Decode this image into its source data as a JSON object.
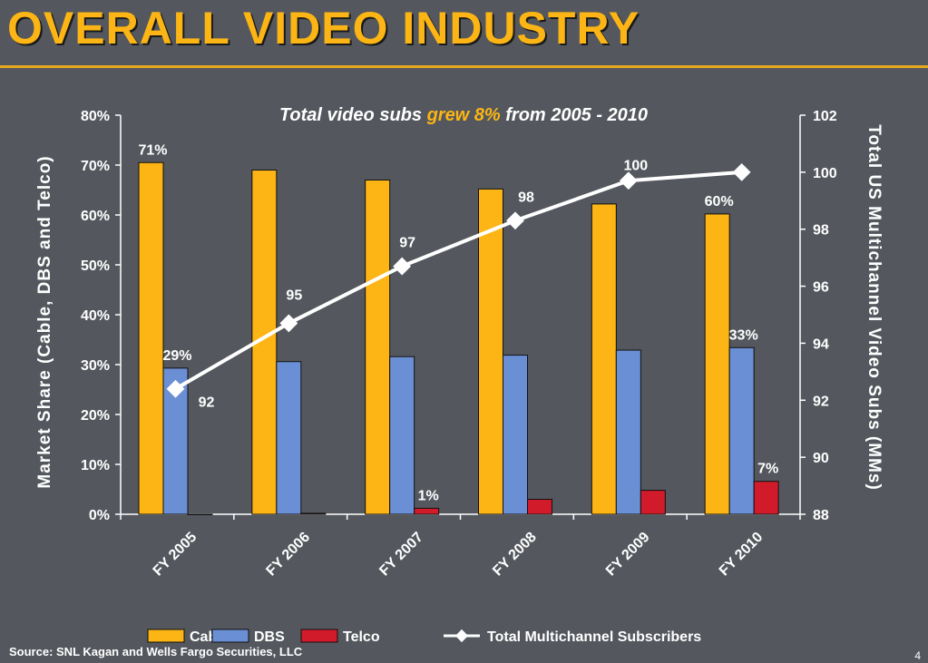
{
  "slide": {
    "title": "OVERALL VIDEO INDUSTRY",
    "source": "Source: SNL Kagan and Wells Fargo Securities, LLC",
    "page_number": "4"
  },
  "colors": {
    "cable": "#fcb514",
    "dbs": "#6b8fd4",
    "telco": "#d11a2a",
    "total": "#ffffff",
    "accent": "#fcb514",
    "background": "#54585e"
  },
  "chart_data": {
    "type": "bar",
    "subtitle_parts": [
      "Total video subs ",
      "grew 8%",
      " from 2005 - 2010"
    ],
    "categories": [
      "FY 2005",
      "FY 2006",
      "FY 2007",
      "FY 2008",
      "FY 2009",
      "FY 2010"
    ],
    "series": [
      {
        "name": "Cable",
        "axis": "left",
        "values": [
          70.5,
          69,
          67,
          65.2,
          62.2,
          60.2
        ],
        "labels": [
          "71%",
          "",
          "",
          "",
          "",
          "60%"
        ]
      },
      {
        "name": "DBS",
        "axis": "left",
        "values": [
          29.3,
          30.6,
          31.6,
          31.9,
          32.9,
          33.4
        ],
        "labels": [
          "29%",
          "",
          "",
          "",
          "",
          "33%"
        ]
      },
      {
        "name": "Telco",
        "axis": "left",
        "values": [
          0,
          0.2,
          1.2,
          3.0,
          4.8,
          6.6
        ],
        "labels": [
          "",
          "",
          "1%",
          "",
          "",
          "7%"
        ]
      },
      {
        "name": "Total Multichannel Subscribers",
        "type": "line",
        "axis": "right",
        "values": [
          92.4,
          94.7,
          96.7,
          98.3,
          99.7,
          100.0
        ],
        "labels": [
          "92",
          "95",
          "97",
          "98",
          "100",
          ""
        ]
      }
    ],
    "ylabel": "Market Share (Cable, DBS and Telco)",
    "y2label": "Total US Multichannel Video Subs (MMs)",
    "ylim": [
      0,
      80
    ],
    "yticks": [
      "0%",
      "10%",
      "20%",
      "30%",
      "40%",
      "50%",
      "60%",
      "70%",
      "80%"
    ],
    "y2lim": [
      88,
      102
    ],
    "y2ticks": [
      "88",
      "90",
      "92",
      "94",
      "96",
      "98",
      "100",
      "102"
    ],
    "legend_position": "bottom",
    "legend": [
      "Cable",
      "DBS",
      "Telco",
      "Total Multichannel Subscribers"
    ],
    "grid": false
  }
}
